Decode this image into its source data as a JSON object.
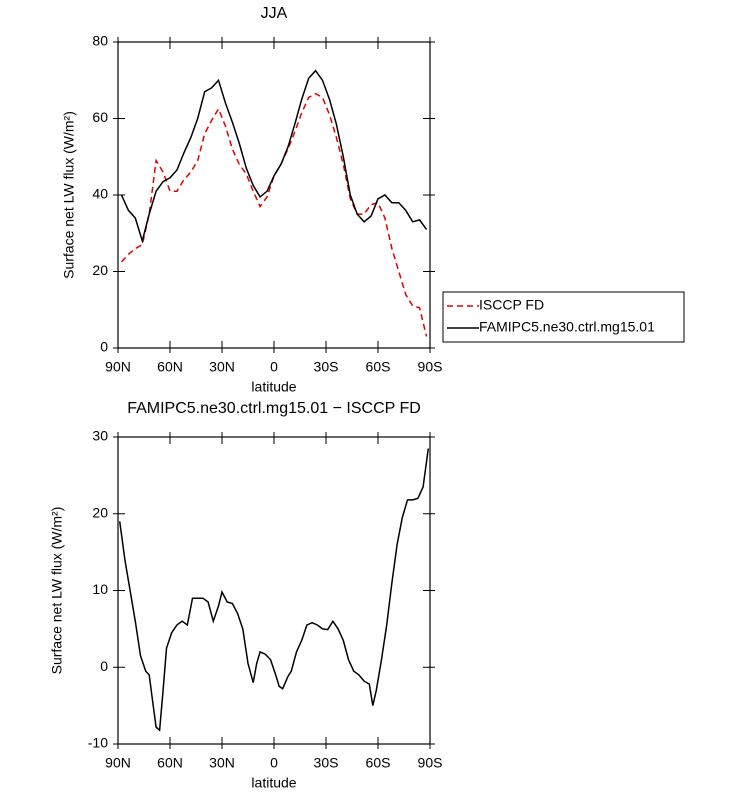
{
  "chart_data": [
    {
      "type": "line",
      "title": "JJA",
      "xlabel": "latitude",
      "ylabel": "Surface net LW flux (W/m²)",
      "x": [
        88,
        84,
        80,
        76,
        72,
        68,
        64,
        60,
        56,
        52,
        48,
        44,
        40,
        36,
        32,
        28,
        24,
        20,
        16,
        12,
        8,
        4,
        0,
        -4,
        -8,
        -12,
        -16,
        -20,
        -24,
        -28,
        -32,
        -36,
        -40,
        -44,
        -48,
        -52,
        -56,
        -60,
        -64,
        -68,
        -72,
        -76,
        -80,
        -84,
        -88
      ],
      "series": [
        {
          "name": "ISCCP FD",
          "color": "#e00000",
          "dash": true,
          "values": [
            22.5,
            24.5,
            26,
            27,
            35,
            49,
            46,
            41,
            41,
            44,
            46,
            49,
            56,
            59.5,
            62.5,
            58,
            52,
            48,
            45.5,
            41,
            37,
            39.5,
            45,
            48,
            52,
            56.5,
            61.5,
            65.5,
            66.5,
            65.5,
            61,
            55,
            48,
            39,
            35,
            35,
            37.5,
            38,
            34,
            26,
            20,
            14,
            11,
            10.5,
            3
          ]
        },
        {
          "name": "FAMIPC5.ne30.ctrl.mg15.01",
          "color": "#000000",
          "dash": false,
          "values": [
            40,
            36,
            34,
            28,
            35,
            41,
            43.5,
            44.5,
            46.5,
            51,
            55,
            60,
            67,
            68,
            70,
            64,
            59,
            53.5,
            47,
            42.5,
            39.5,
            41,
            45,
            48,
            52.5,
            58.5,
            65,
            70.5,
            72.5,
            70,
            65,
            58.5,
            50,
            40,
            35,
            33,
            34.5,
            39,
            40,
            38,
            38,
            36,
            33,
            33.5,
            31
          ]
        }
      ],
      "xlim": [
        90,
        -90
      ],
      "xticks": [
        {
          "value": 90,
          "label": "90N"
        },
        {
          "value": 60,
          "label": "60N"
        },
        {
          "value": 30,
          "label": "30N"
        },
        0,
        {
          "value": -30,
          "label": "30S"
        },
        {
          "value": -60,
          "label": "60S"
        },
        {
          "value": -90,
          "label": "90S"
        }
      ],
      "ylim": [
        0,
        80
      ],
      "yticks": [
        0,
        20,
        40,
        60,
        80
      ],
      "legend": "right"
    },
    {
      "type": "line",
      "title": "FAMIPC5.ne30.ctrl.mg15.01 − ISCCP FD",
      "xlabel": "latitude",
      "ylabel": "Surface net LW flux (W/m²)",
      "x": [
        89,
        86,
        83,
        80,
        77,
        74,
        72,
        70,
        68,
        66,
        64,
        62,
        59,
        56,
        53,
        50,
        47,
        44,
        41,
        38,
        35,
        32,
        30,
        27,
        24,
        21,
        18,
        15,
        12,
        10,
        8,
        5,
        2,
        -1,
        -3,
        -5,
        -8,
        -10,
        -13,
        -16,
        -19,
        -22,
        -25,
        -28,
        -31,
        -34,
        -37,
        -40,
        -43,
        -46,
        -49,
        -52,
        -55,
        -57,
        -59,
        -62,
        -65,
        -68,
        -71,
        -74,
        -77,
        -80,
        -83,
        -86,
        -89
      ],
      "values": [
        19,
        14,
        10,
        6,
        1.5,
        -0.5,
        -1,
        -4.5,
        -7.8,
        -8.2,
        -3,
        2.5,
        4.5,
        5.5,
        6,
        5.5,
        9,
        9,
        9,
        8.5,
        6,
        8,
        9.8,
        8.5,
        8.3,
        7,
        5,
        0.5,
        -2,
        0.5,
        2,
        1.7,
        1,
        -1,
        -2.5,
        -2.8,
        -1.2,
        -0.5,
        2,
        3.5,
        5.5,
        5.8,
        5.5,
        5,
        4.9,
        6,
        5,
        3.5,
        1,
        -0.5,
        -1,
        -1.8,
        -2.2,
        -5,
        -3,
        1,
        5.5,
        11,
        16,
        19.5,
        21.8,
        21.8,
        22,
        23.5,
        28.5
      ],
      "color": "#000000",
      "xlim": [
        90,
        -90
      ],
      "xticks": [
        {
          "value": 90,
          "label": "90N"
        },
        {
          "value": 60,
          "label": "60N"
        },
        {
          "value": 30,
          "label": "30N"
        },
        0,
        {
          "value": -30,
          "label": "30S"
        },
        {
          "value": -60,
          "label": "60S"
        },
        {
          "value": -90,
          "label": "90S"
        }
      ],
      "ylim": [
        -10,
        30
      ],
      "yticks": [
        -10,
        0,
        10,
        20,
        30
      ]
    }
  ]
}
